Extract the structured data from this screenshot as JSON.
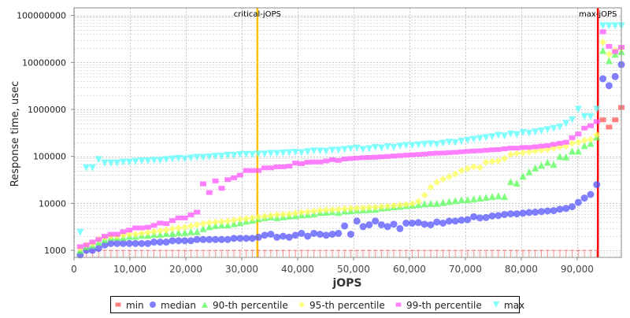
{
  "chart_data": {
    "type": "scatter",
    "title": "",
    "xlabel": "jOPS",
    "ylabel": "Response time, usec",
    "xlim": [
      0,
      97900
    ],
    "ylim": [
      708,
      145000000
    ],
    "yscale": "log",
    "grid": true,
    "legend_position": "bottom",
    "x_ticks": [
      "0",
      "10,000",
      "20,000",
      "30,000",
      "40,000",
      "50,000",
      "60,000",
      "70,000",
      "80,000",
      "90,000"
    ],
    "x_tick_values": [
      0,
      10000,
      20000,
      30000,
      40000,
      50000,
      60000,
      70000,
      80000,
      90000
    ],
    "y_ticks": [
      "1000",
      "10000",
      "100000",
      "1000000",
      "10000000",
      "100000000"
    ],
    "y_tick_values": [
      1000,
      10000,
      100000,
      1000000,
      10000000,
      100000000
    ],
    "markers": [
      {
        "label": "critical-jOPS",
        "value": 32800,
        "color": "#ffc000"
      },
      {
        "label": "max-jOPS",
        "value": 93700,
        "color": "#ff0000"
      }
    ],
    "x_step": 1100,
    "series": [
      {
        "name": "min",
        "color": "#ff5555",
        "shape": "square",
        "values": [
          1000,
          1000,
          1000,
          1000,
          1000,
          1000,
          1000,
          1000,
          1000,
          1000,
          1000,
          1000,
          1000,
          1000,
          1000,
          1000,
          1000,
          1000,
          1000,
          1000,
          1000,
          1000,
          1000,
          1000,
          1000,
          1000,
          1000,
          1000,
          1000,
          1000,
          1000,
          1000,
          1000,
          1000,
          1000,
          1000,
          1000,
          1000,
          1000,
          1000,
          1000,
          1000,
          1000,
          1000,
          1000,
          1000,
          1000,
          1000,
          1000,
          1000,
          1000,
          1000,
          1000,
          1000,
          1000,
          1000,
          1000,
          1000,
          1000,
          1000,
          1000,
          1000,
          1000,
          1000,
          1000,
          1000,
          1000,
          1000,
          1000,
          1000,
          1000,
          1000,
          1000,
          1000,
          1000,
          1000,
          1000,
          1000,
          1000,
          1000,
          1000,
          1000,
          1000,
          1000,
          1000,
          600000,
          420000,
          600000,
          1100000
        ]
      },
      {
        "name": "median",
        "color": "#5555ff",
        "shape": "circle",
        "values": [
          800,
          1000,
          1000,
          1100,
          1300,
          1400,
          1400,
          1400,
          1400,
          1400,
          1400,
          1400,
          1500,
          1500,
          1500,
          1600,
          1600,
          1600,
          1600,
          1700,
          1700,
          1700,
          1700,
          1700,
          1700,
          1800,
          1800,
          1800,
          1800,
          1900,
          2100,
          2200,
          1900,
          2000,
          1900,
          2100,
          2300,
          2000,
          2300,
          2200,
          2100,
          2200,
          2300,
          3300,
          2200,
          4200,
          3200,
          3500,
          4200,
          3500,
          3200,
          3600,
          2900,
          3800,
          3800,
          3900,
          3600,
          3500,
          4000,
          3800,
          4200,
          4200,
          4400,
          4500,
          5200,
          4900,
          5000,
          5400,
          5500,
          5800,
          6000,
          6000,
          6200,
          6400,
          6500,
          6700,
          6900,
          7000,
          7500,
          7800,
          8500,
          10500,
          13000,
          15500,
          25000,
          4500000,
          3200000,
          5000000,
          9000000
        ]
      },
      {
        "name": "90-th percentile",
        "color": "#55ff55",
        "shape": "triangle-up",
        "values": [
          1000,
          1200,
          1300,
          1500,
          1700,
          1900,
          1900,
          1900,
          2000,
          2000,
          2100,
          2100,
          2200,
          2200,
          2300,
          2300,
          2400,
          2400,
          2500,
          2500,
          2900,
          3200,
          3400,
          3500,
          3500,
          3700,
          3900,
          4200,
          4400,
          4700,
          5000,
          5200,
          5000,
          5200,
          5400,
          5500,
          5700,
          5800,
          6000,
          6400,
          6500,
          6700,
          6400,
          6900,
          7000,
          7200,
          7300,
          7400,
          7500,
          8000,
          8200,
          8500,
          8700,
          9000,
          9200,
          9500,
          9800,
          10000,
          10000,
          10500,
          11000,
          11500,
          12000,
          12000,
          12500,
          13000,
          13500,
          14000,
          14500,
          14000,
          29000,
          27000,
          38000,
          47000,
          57000,
          65000,
          75000,
          68000,
          100000,
          98000,
          130000,
          130000,
          170000,
          190000,
          260000,
          18000000,
          11000000,
          15000000,
          17000000
        ]
      },
      {
        "name": "95-th percentile",
        "color": "#ffff55",
        "shape": "diamond",
        "values": [
          1100,
          1300,
          1400,
          1700,
          1900,
          2000,
          2000,
          2100,
          2200,
          2200,
          2300,
          2400,
          2500,
          2600,
          2700,
          2900,
          3000,
          3100,
          3300,
          3500,
          3700,
          3900,
          4000,
          4100,
          4200,
          4400,
          4600,
          4700,
          4900,
          5100,
          5300,
          5500,
          5700,
          5800,
          5900,
          6200,
          6400,
          6600,
          6900,
          7100,
          7300,
          7300,
          7500,
          7700,
          7800,
          7900,
          8000,
          8200,
          8300,
          8500,
          8700,
          9000,
          9200,
          9500,
          9800,
          11000,
          15000,
          22000,
          28000,
          33000,
          37000,
          42000,
          50000,
          55000,
          60000,
          58000,
          75000,
          78000,
          80000,
          90000,
          110000,
          115000,
          120000,
          125000,
          130000,
          135000,
          140000,
          150000,
          160000,
          165000,
          190000,
          200000,
          220000,
          230000,
          290000,
          27000000,
          15000000,
          18000000,
          20000000
        ]
      },
      {
        "name": "99-th percentile",
        "color": "#ff55ff",
        "shape": "square",
        "values": [
          1200,
          1300,
          1500,
          1700,
          2000,
          2200,
          2200,
          2500,
          2700,
          3000,
          3000,
          3100,
          3400,
          3800,
          3700,
          4300,
          4900,
          4900,
          5700,
          6500,
          26000,
          17000,
          30000,
          21000,
          32000,
          35000,
          40000,
          50000,
          50000,
          50000,
          57000,
          57000,
          60000,
          60000,
          62000,
          72000,
          70000,
          75000,
          76000,
          76000,
          80000,
          85000,
          82000,
          88000,
          90000,
          92000,
          94000,
          95000,
          96000,
          98000,
          100000,
          102000,
          104000,
          106000,
          108000,
          110000,
          112000,
          115000,
          117000,
          118000,
          120000,
          122000,
          125000,
          128000,
          130000,
          132000,
          135000,
          138000,
          140000,
          145000,
          150000,
          150000,
          155000,
          155000,
          160000,
          165000,
          170000,
          180000,
          190000,
          200000,
          250000,
          300000,
          400000,
          450000,
          550000,
          45000000,
          22000000,
          17000000,
          21000000
        ]
      },
      {
        "name": "max",
        "color": "#55ffff",
        "shape": "triangle-down",
        "values": [
          2400,
          57000,
          57000,
          85000,
          72000,
          72000,
          72000,
          75000,
          75000,
          78000,
          80000,
          80000,
          82000,
          82000,
          85000,
          88000,
          90000,
          88000,
          92000,
          95000,
          95000,
          97000,
          100000,
          100000,
          105000,
          105000,
          110000,
          110000,
          110000,
          112000,
          112000,
          115000,
          115000,
          118000,
          120000,
          122000,
          120000,
          125000,
          130000,
          130000,
          128000,
          135000,
          135000,
          140000,
          145000,
          150000,
          140000,
          145000,
          155000,
          150000,
          160000,
          155000,
          165000,
          170000,
          170000,
          175000,
          180000,
          185000,
          180000,
          190000,
          200000,
          195000,
          210000,
          220000,
          230000,
          240000,
          250000,
          260000,
          280000,
          270000,
          300000,
          290000,
          320000,
          310000,
          330000,
          350000,
          370000,
          390000,
          420000,
          500000,
          600000,
          1000000,
          700000,
          700000,
          1000000,
          60000000,
          60000000,
          60000000,
          60000000
        ]
      }
    ]
  }
}
